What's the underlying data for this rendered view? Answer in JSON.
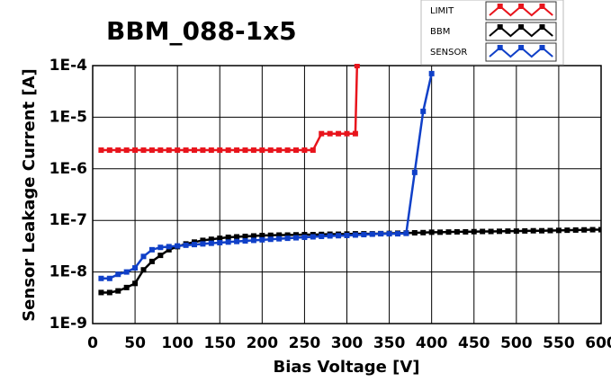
{
  "chart_data": {
    "type": "line",
    "title": "BBM_088-1x5",
    "x_label": "Bias Voltage [V]",
    "y_label": "Sensor Leakage Current [A]",
    "log_y": true,
    "grid": true,
    "legend": "top-right",
    "xlim": [
      0,
      600
    ],
    "xticks": [
      0,
      50,
      100,
      150,
      200,
      250,
      300,
      350,
      400,
      450,
      500,
      550,
      600
    ],
    "ylim": [
      1e-09,
      0.0001
    ],
    "yticks": [
      {
        "value": 1e-09,
        "label": "1E-9"
      },
      {
        "value": 1e-08,
        "label": "1E-8"
      },
      {
        "value": 1e-07,
        "label": "1E-7"
      },
      {
        "value": 1e-06,
        "label": "1E-6"
      },
      {
        "value": 1e-05,
        "label": "1E-5"
      },
      {
        "value": 0.0001,
        "label": "1E-4"
      }
    ],
    "series": [
      {
        "name": "LIMIT",
        "color": "#e8141c",
        "x": [
          10,
          20,
          30,
          40,
          50,
          60,
          70,
          80,
          90,
          100,
          110,
          120,
          130,
          140,
          150,
          160,
          170,
          180,
          190,
          200,
          210,
          220,
          230,
          240,
          250,
          260,
          270,
          280,
          290,
          300,
          310,
          312
        ],
        "values": [
          2.3e-06,
          2.3e-06,
          2.3e-06,
          2.3e-06,
          2.3e-06,
          2.3e-06,
          2.3e-06,
          2.3e-06,
          2.3e-06,
          2.3e-06,
          2.3e-06,
          2.3e-06,
          2.3e-06,
          2.3e-06,
          2.3e-06,
          2.3e-06,
          2.3e-06,
          2.3e-06,
          2.3e-06,
          2.3e-06,
          2.3e-06,
          2.3e-06,
          2.3e-06,
          2.3e-06,
          2.3e-06,
          2.3e-06,
          4.8e-06,
          4.8e-06,
          4.8e-06,
          4.8e-06,
          4.8e-06,
          0.0001
        ]
      },
      {
        "name": "BBM",
        "color": "#000000",
        "x": [
          10,
          20,
          30,
          40,
          50,
          60,
          70,
          80,
          90,
          100,
          110,
          120,
          130,
          140,
          150,
          160,
          170,
          180,
          190,
          200,
          210,
          220,
          230,
          240,
          250,
          260,
          270,
          280,
          290,
          300,
          310,
          320,
          330,
          340,
          350,
          360,
          370,
          380,
          390,
          400,
          410,
          420,
          430,
          440,
          450,
          460,
          470,
          480,
          490,
          500,
          510,
          520,
          530,
          540,
          550,
          560,
          570,
          580,
          590,
          600
        ],
        "values": [
          4e-09,
          4e-09,
          4.3e-09,
          5e-09,
          6e-09,
          1.1e-08,
          1.6e-08,
          2.1e-08,
          2.7e-08,
          3.1e-08,
          3.5e-08,
          3.8e-08,
          4.1e-08,
          4.3e-08,
          4.5e-08,
          4.7e-08,
          4.8e-08,
          4.9e-08,
          5e-08,
          5.1e-08,
          5.15e-08,
          5.2e-08,
          5.2e-08,
          5.25e-08,
          5.3e-08,
          5.3e-08,
          5.35e-08,
          5.4e-08,
          5.4e-08,
          5.45e-08,
          5.5e-08,
          5.5e-08,
          5.5e-08,
          5.55e-08,
          5.6e-08,
          5.65e-08,
          5.7e-08,
          5.75e-08,
          5.8e-08,
          5.9e-08,
          5.9e-08,
          5.95e-08,
          6e-08,
          6e-08,
          6.05e-08,
          6.1e-08,
          6.1e-08,
          6.15e-08,
          6.2e-08,
          6.2e-08,
          6.25e-08,
          6.3e-08,
          6.3e-08,
          6.35e-08,
          6.4e-08,
          6.45e-08,
          6.5e-08,
          6.55e-08,
          6.6e-08,
          6.6e-08
        ]
      },
      {
        "name": "SENSOR",
        "color": "#1040c8",
        "x": [
          10,
          20,
          30,
          40,
          50,
          60,
          70,
          80,
          90,
          100,
          110,
          120,
          130,
          140,
          150,
          160,
          170,
          180,
          190,
          200,
          210,
          220,
          230,
          240,
          250,
          260,
          270,
          280,
          290,
          300,
          310,
          320,
          330,
          340,
          350,
          360,
          370,
          380,
          390,
          400
        ],
        "values": [
          7.5e-09,
          7.5e-09,
          9e-09,
          1e-08,
          1.2e-08,
          2e-08,
          2.7e-08,
          3e-08,
          3.1e-08,
          3.2e-08,
          3.3e-08,
          3.4e-08,
          3.5e-08,
          3.6e-08,
          3.7e-08,
          3.8e-08,
          3.9e-08,
          4e-08,
          4.1e-08,
          4.2e-08,
          4.3e-08,
          4.4e-08,
          4.5e-08,
          4.6e-08,
          4.7e-08,
          4.8e-08,
          4.9e-08,
          5e-08,
          5.05e-08,
          5.1e-08,
          5.2e-08,
          5.3e-08,
          5.4e-08,
          5.5e-08,
          5.5e-08,
          5.5e-08,
          5.6e-08,
          8.5e-07,
          1.3e-05,
          7e-05
        ]
      }
    ]
  }
}
